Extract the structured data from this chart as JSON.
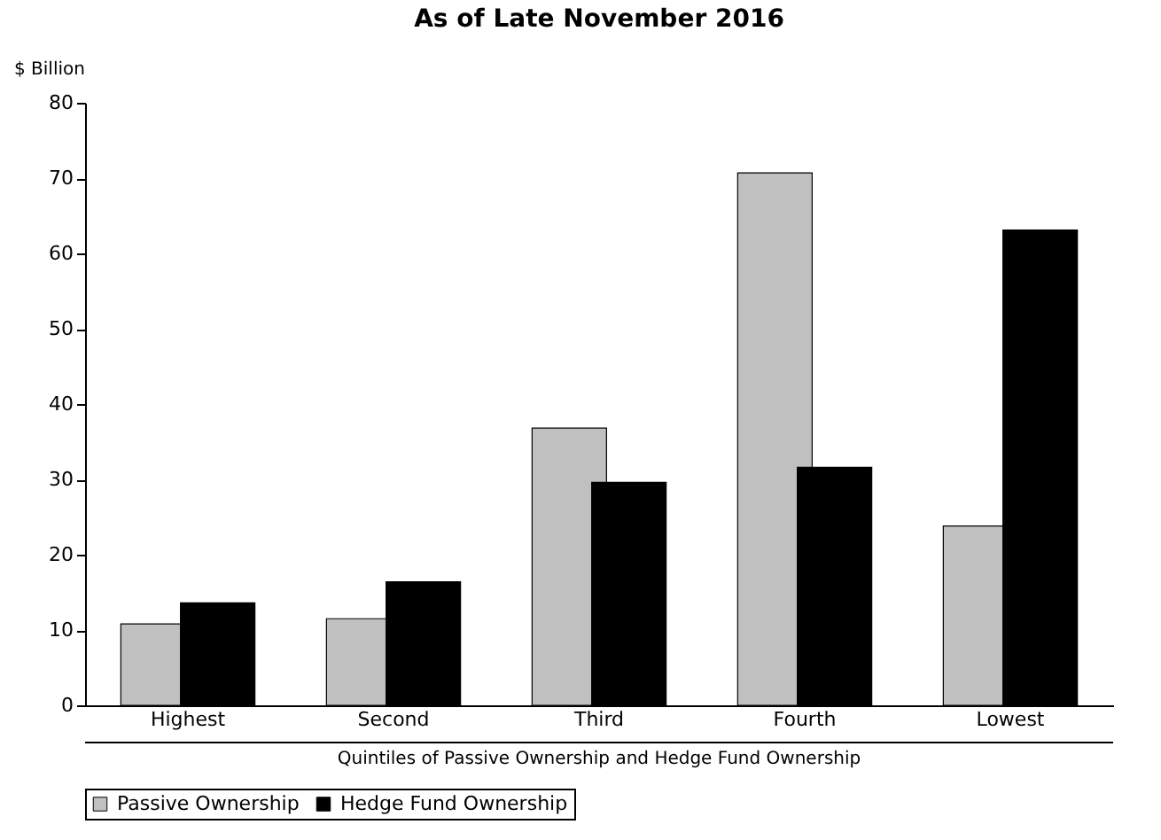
{
  "chart_data": {
    "type": "bar",
    "title": "As of Late November 2016",
    "ylabel": "$ Billion",
    "xlabel": "Quintiles of Passive Ownership and Hedge Fund Ownership",
    "categories": [
      "Highest",
      "Second",
      "Third",
      "Fourth",
      "Lowest"
    ],
    "series": [
      {
        "name": "Passive Ownership",
        "color": "#c0c0c0",
        "values": [
          10.8,
          11.5,
          36.8,
          70.7,
          23.8
        ]
      },
      {
        "name": "Hedge Fund Ownership",
        "color": "#000000",
        "values": [
          13.6,
          16.4,
          29.6,
          31.6,
          63.1
        ]
      }
    ],
    "ylim": [
      0,
      80
    ],
    "yticks": [
      0,
      10,
      20,
      30,
      40,
      50,
      60,
      70,
      80
    ],
    "grid": false,
    "legend": "bottom"
  }
}
